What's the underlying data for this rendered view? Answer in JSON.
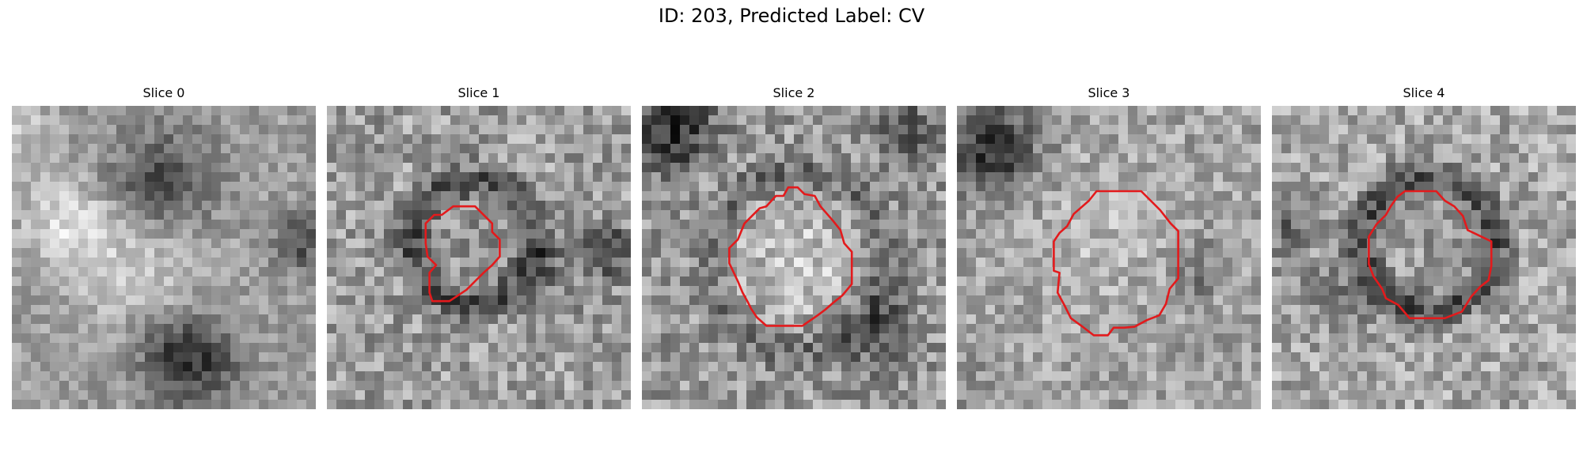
{
  "figure": {
    "title": "ID: 203, Predicted Label: CV"
  },
  "colors": {
    "contour": "#e31a1c",
    "background": "#ffffff"
  },
  "slices": [
    {
      "label": "Slice 0",
      "has_contour": false
    },
    {
      "label": "Slice 1",
      "has_contour": true
    },
    {
      "label": "Slice 2",
      "has_contour": true
    },
    {
      "label": "Slice 3",
      "has_contour": true
    },
    {
      "label": "Slice 4",
      "has_contour": true
    }
  ]
}
